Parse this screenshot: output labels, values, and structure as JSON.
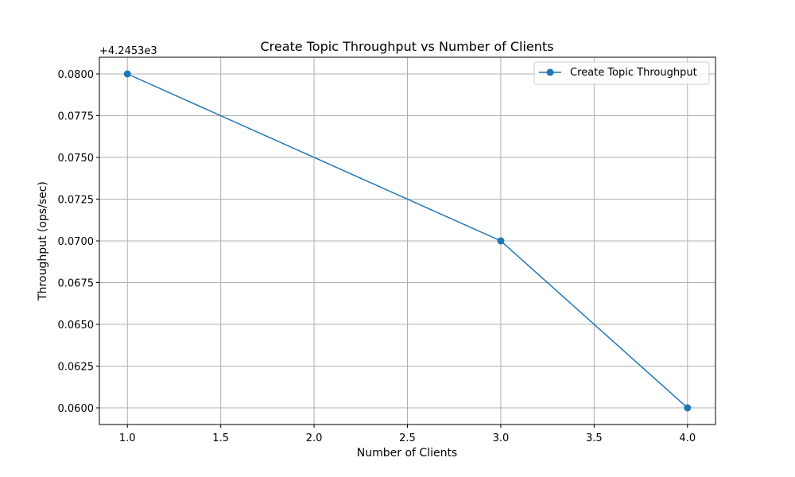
{
  "chart_data": {
    "type": "line",
    "title": "Create Topic Throughput vs Number of Clients",
    "xlabel": "Number of Clients",
    "ylabel": "Throughput (ops/sec)",
    "y_offset_label": "+4.2453e3",
    "x": [
      1.0,
      3.0,
      4.0
    ],
    "series": [
      {
        "name": "Create Topic Throughput",
        "values": [
          0.08,
          0.07,
          0.06
        ],
        "color": "#1f77b4",
        "marker": "circle"
      }
    ],
    "xlim": [
      0.85,
      4.15
    ],
    "ylim": [
      0.059,
      0.081
    ],
    "x_ticks": [
      1.0,
      1.5,
      2.0,
      2.5,
      3.0,
      3.5,
      4.0
    ],
    "x_tick_labels": [
      "1.0",
      "1.5",
      "2.0",
      "2.5",
      "3.0",
      "3.5",
      "4.0"
    ],
    "y_ticks": [
      0.06,
      0.0625,
      0.065,
      0.0675,
      0.07,
      0.0725,
      0.075,
      0.0775,
      0.08
    ],
    "y_tick_labels": [
      "0.0600",
      "0.0625",
      "0.0650",
      "0.0675",
      "0.0700",
      "0.0725",
      "0.0750",
      "0.0775",
      "0.0800"
    ],
    "grid": true,
    "legend_position": "top-right"
  }
}
